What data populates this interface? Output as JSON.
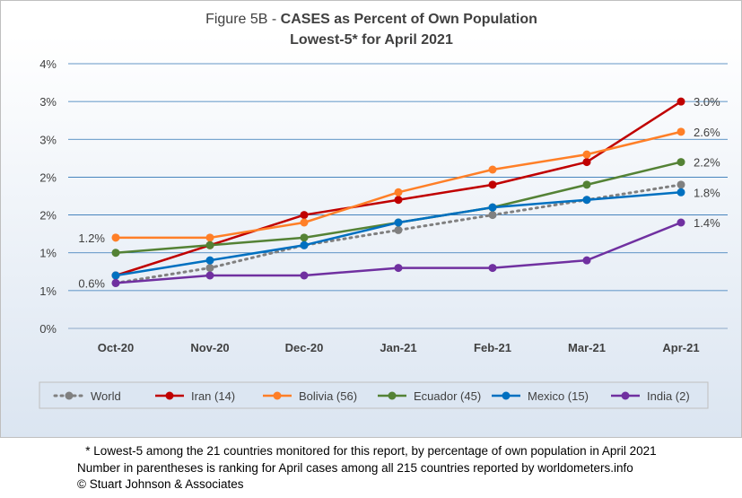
{
  "chart_data": {
    "type": "line",
    "title_prefix": "Figure 5B - ",
    "title_main": "CASES as Percent of Own Population",
    "subtitle": "Lowest-5* for April 2021",
    "categories": [
      "Oct-20",
      "Nov-20",
      "Dec-20",
      "Jan-21",
      "Feb-21",
      "Mar-21",
      "Apr-21"
    ],
    "y_ticks": [
      "0%",
      "1%",
      "1%",
      "2%",
      "2%",
      "3%",
      "3%",
      "4%"
    ],
    "ylim": [
      0,
      3.5
    ],
    "grid": true,
    "legend_position": "bottom",
    "series": [
      {
        "name": "World",
        "color": "#808080",
        "dashed": true,
        "values": [
          0.6,
          0.8,
          1.1,
          1.3,
          1.5,
          1.7,
          1.9
        ]
      },
      {
        "name": "Iran (14)",
        "color": "#c00000",
        "dashed": false,
        "values": [
          0.7,
          1.1,
          1.5,
          1.7,
          1.9,
          2.2,
          3.0
        ]
      },
      {
        "name": "Bolivia (56)",
        "color": "#ff7f27",
        "dashed": false,
        "values": [
          1.2,
          1.2,
          1.4,
          1.8,
          2.1,
          2.3,
          2.6
        ]
      },
      {
        "name": "Ecuador (45)",
        "color": "#548235",
        "dashed": false,
        "values": [
          1.0,
          1.1,
          1.2,
          1.4,
          1.6,
          1.9,
          2.2
        ]
      },
      {
        "name": "Mexico (15)",
        "color": "#0070c0",
        "dashed": false,
        "values": [
          0.7,
          0.9,
          1.1,
          1.4,
          1.6,
          1.7,
          1.8
        ]
      },
      {
        "name": "India (2)",
        "color": "#7030a0",
        "dashed": false,
        "values": [
          0.6,
          0.7,
          0.7,
          0.8,
          0.8,
          0.9,
          1.4
        ]
      }
    ],
    "annotations": {
      "start": [
        "1.2%",
        "0.6%"
      ],
      "end": [
        "3.0%",
        "2.6%",
        "2.2%",
        "1.8%",
        "1.4%"
      ]
    }
  },
  "footer": {
    "line1": "* Lowest-5 among the 21 countries monitored for this report, by percentage of own population in April 2021",
    "line2": "Number in parentheses is ranking for April cases among all 215 countries reported by worldometers.info",
    "line3": "© Stuart Johnson & Associates"
  }
}
